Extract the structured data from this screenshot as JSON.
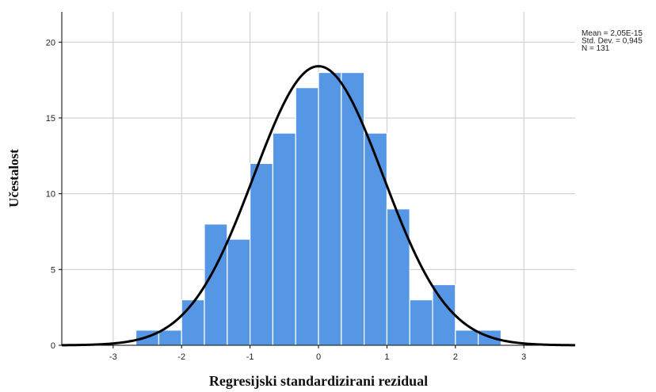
{
  "chart_data": {
    "type": "bar",
    "subtype": "histogram",
    "xlabel": "Regresijski standardizirani rezidual",
    "ylabel": "Učestalost",
    "xlim": [
      -3.75,
      3.75
    ],
    "ylim": [
      0,
      22
    ],
    "x_ticks": [
      -3,
      -2,
      -1,
      0,
      1,
      2,
      3
    ],
    "y_ticks": [
      0,
      5,
      10,
      15,
      20
    ],
    "grid": true,
    "bin_width": 0.333,
    "bins": [
      {
        "start": -2.667,
        "end": -2.333,
        "count": 1
      },
      {
        "start": -2.333,
        "end": -2.0,
        "count": 1
      },
      {
        "start": -2.0,
        "end": -1.667,
        "count": 3
      },
      {
        "start": -1.667,
        "end": -1.333,
        "count": 8
      },
      {
        "start": -1.333,
        "end": -1.0,
        "count": 7
      },
      {
        "start": -1.0,
        "end": -0.667,
        "count": 12
      },
      {
        "start": -0.667,
        "end": -0.333,
        "count": 14
      },
      {
        "start": -0.333,
        "end": 0.0,
        "count": 17
      },
      {
        "start": 0.0,
        "end": 0.333,
        "count": 18
      },
      {
        "start": 0.333,
        "end": 0.667,
        "count": 18
      },
      {
        "start": 0.667,
        "end": 1.0,
        "count": 14
      },
      {
        "start": 1.0,
        "end": 1.333,
        "count": 9
      },
      {
        "start": 1.333,
        "end": 1.667,
        "count": 3
      },
      {
        "start": 1.667,
        "end": 2.0,
        "count": 4
      },
      {
        "start": 2.0,
        "end": 2.333,
        "count": 1
      },
      {
        "start": 2.333,
        "end": 2.667,
        "count": 1
      }
    ],
    "normal_curve": {
      "mean": 0.0,
      "sd": 0.945,
      "n": 131
    },
    "stats_text": [
      "Mean = 2,05E-15",
      "Std. Dev. = 0,945",
      "N = 131"
    ],
    "bar_color": "#5597E5",
    "bar_edge_color": "#ffffff",
    "curve_color": "#000000"
  }
}
